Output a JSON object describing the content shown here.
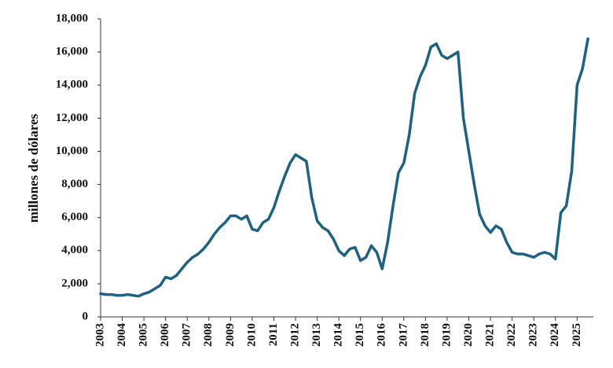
{
  "chart_data": {
    "type": "line",
    "y_label": "millones de dólares",
    "x": [
      2003,
      2003.25,
      2003.5,
      2003.75,
      2004,
      2004.25,
      2004.5,
      2004.75,
      2005,
      2005.25,
      2005.5,
      2005.75,
      2006,
      2006.25,
      2006.5,
      2006.75,
      2007,
      2007.25,
      2007.5,
      2007.75,
      2008,
      2008.25,
      2008.5,
      2008.75,
      2009,
      2009.25,
      2009.5,
      2009.75,
      2010,
      2010.25,
      2010.5,
      2010.75,
      2011,
      2011.25,
      2011.5,
      2011.75,
      2012,
      2012.25,
      2012.5,
      2012.75,
      2013,
      2013.25,
      2013.5,
      2013.75,
      2014,
      2014.25,
      2014.5,
      2014.75,
      2015,
      2015.25,
      2015.5,
      2015.75,
      2016,
      2016.25,
      2016.5,
      2016.75,
      2017,
      2017.25,
      2017.5,
      2017.75,
      2018,
      2018.25,
      2018.5,
      2018.75,
      2019,
      2019.25,
      2019.5,
      2019.75,
      2020,
      2020.25,
      2020.5,
      2020.75,
      2021,
      2021.25,
      2021.5,
      2021.75,
      2022,
      2022.25,
      2022.5,
      2022.75,
      2023,
      2023.25,
      2023.5,
      2023.75,
      2024,
      2024.25,
      2024.5,
      2024.75,
      2025,
      2025.25,
      2025.5
    ],
    "series": [
      {
        "name": "millones de dólares",
        "color": "#1d6282",
        "values": [
          1400,
          1350,
          1350,
          1300,
          1300,
          1350,
          1300,
          1250,
          1400,
          1500,
          1700,
          1900,
          2400,
          2300,
          2500,
          2900,
          3300,
          3600,
          3800,
          4100,
          4500,
          5000,
          5400,
          5700,
          6100,
          6100,
          5900,
          6100,
          5300,
          5200,
          5700,
          5900,
          6600,
          7600,
          8500,
          9300,
          9800,
          9600,
          9400,
          7200,
          5800,
          5400,
          5200,
          4700,
          4000,
          3700,
          4100,
          4200,
          3400,
          3600,
          4300,
          3900,
          2900,
          4500,
          6700,
          8700,
          9300,
          11000,
          13500,
          14500,
          15200,
          16300,
          16500,
          15800,
          15600,
          15800,
          16000,
          12000,
          10000,
          8000,
          6200,
          5500,
          5100,
          5500,
          5300,
          4500,
          3900,
          3800,
          3800,
          3700,
          3600,
          3800,
          3900,
          3800,
          3500,
          6300,
          6700,
          8800,
          14000,
          15000,
          16800
        ]
      }
    ],
    "xlim": [
      2003,
      2025.75
    ],
    "xticks": [
      2003,
      2004,
      2005,
      2006,
      2007,
      2008,
      2009,
      2010,
      2011,
      2012,
      2013,
      2014,
      2015,
      2016,
      2017,
      2018,
      2019,
      2020,
      2021,
      2022,
      2023,
      2024,
      2025
    ],
    "ylim": [
      0,
      18000
    ],
    "yticks": [
      0,
      {
        "value": 2000,
        "label": "2,000"
      },
      {
        "value": 4000,
        "label": "4,000"
      },
      {
        "value": 6000,
        "label": "6,000"
      },
      {
        "value": 8000,
        "label": "8,000"
      },
      {
        "value": 10000,
        "label": "10,000"
      },
      {
        "value": 12000,
        "label": "12,000"
      },
      {
        "value": 14000,
        "label": "14,000"
      },
      {
        "value": 16000,
        "label": "16,000"
      },
      {
        "value": 18000,
        "label": "18,000"
      }
    ],
    "grid": false
  }
}
